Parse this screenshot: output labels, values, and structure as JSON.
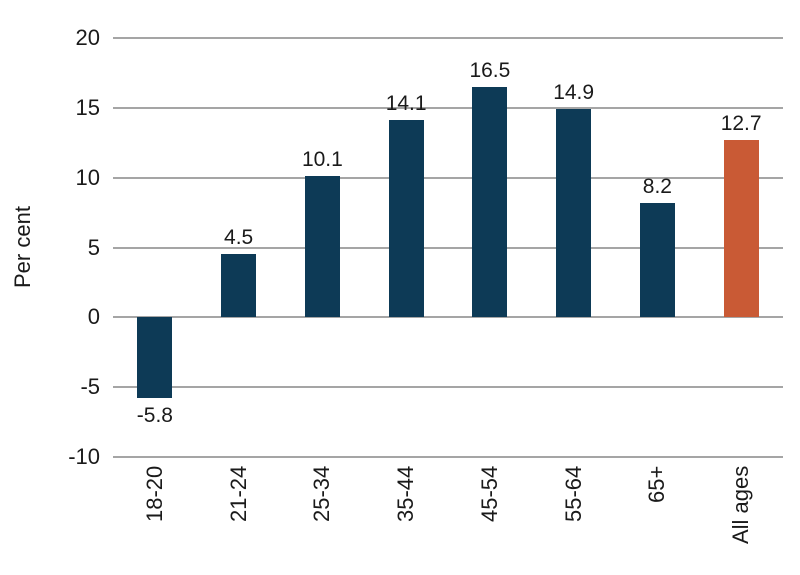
{
  "chart_data": {
    "type": "bar",
    "title": "",
    "xlabel": "",
    "ylabel": "Per cent",
    "categories": [
      "18-20",
      "21-24",
      "25-34",
      "35-44",
      "45-54",
      "55-64",
      "65+",
      "All ages"
    ],
    "values": [
      -5.8,
      4.5,
      10.1,
      14.1,
      16.5,
      14.9,
      8.2,
      12.7
    ],
    "value_labels": [
      "-5.8",
      "4.5",
      "10.1",
      "14.1",
      "16.5",
      "14.9",
      "8.2",
      "12.7"
    ],
    "highlight_category": "All ages",
    "highlight_index": 7,
    "ylim": [
      -10,
      20
    ],
    "yticks": [
      20,
      15,
      10,
      5,
      0,
      -5,
      -10
    ],
    "grid": true,
    "legend": "none",
    "colors": {
      "bar": "#0d3a56",
      "highlight": "#c95a35",
      "gridline": "#a5a5a5",
      "text": "#1a1a1a"
    }
  }
}
